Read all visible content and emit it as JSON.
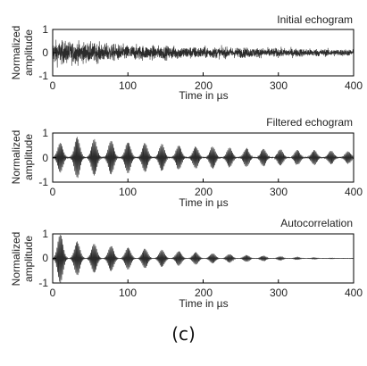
{
  "caption": "(c)",
  "chart_data": [
    {
      "type": "line",
      "title": "Initial echogram",
      "xlabel": "Time in µs",
      "ylabel": "Normalized amplitude",
      "ylabel_lines": [
        "Normalized",
        "amplitude"
      ],
      "xlim": [
        0,
        400
      ],
      "ylim": [
        -1,
        1
      ],
      "xticks": [
        0,
        100,
        200,
        300,
        400
      ],
      "yticks": [
        -1,
        0,
        1
      ],
      "signal": "noisy decaying echo",
      "envelope": {
        "t": [
          0,
          100,
          200,
          300,
          400
        ],
        "amplitude": [
          0.95,
          0.6,
          0.45,
          0.35,
          0.25
        ]
      }
    },
    {
      "type": "line",
      "title": "Filtered echogram",
      "xlabel": "Time in µs",
      "ylabel": "Normalized amplitude",
      "ylabel_lines": [
        "Normalized",
        "amplitude"
      ],
      "xlim": [
        0,
        400
      ],
      "ylim": [
        -1,
        1
      ],
      "xticks": [
        0,
        100,
        200,
        300,
        400
      ],
      "yticks": [
        -1,
        0,
        1
      ],
      "signal": "periodic echo bursts",
      "burst_period": 22.5,
      "burst_peaks": [
        0.6,
        0.85,
        0.75,
        0.7,
        0.65,
        0.6,
        0.55,
        0.5,
        0.45,
        0.45,
        0.4,
        0.38,
        0.35,
        0.33,
        0.3,
        0.3,
        0.28,
        0.25
      ]
    },
    {
      "type": "line",
      "title": "Autocorrelation",
      "xlabel": "Time in µs",
      "ylabel": "Normalized amplitude",
      "ylabel_lines": [
        "Normalized",
        "amplitude"
      ],
      "xlim": [
        0,
        400
      ],
      "ylim": [
        -1,
        1
      ],
      "xticks": [
        0,
        100,
        200,
        300,
        400
      ],
      "yticks": [
        -1,
        0,
        1
      ],
      "signal": "decaying periodic autocorrelation",
      "burst_period": 22.5,
      "burst_peaks": [
        1.0,
        0.7,
        0.6,
        0.52,
        0.45,
        0.4,
        0.35,
        0.3,
        0.25,
        0.2,
        0.17,
        0.13,
        0.1,
        0.07,
        0.05,
        0.03,
        0.015,
        0.005
      ]
    }
  ]
}
